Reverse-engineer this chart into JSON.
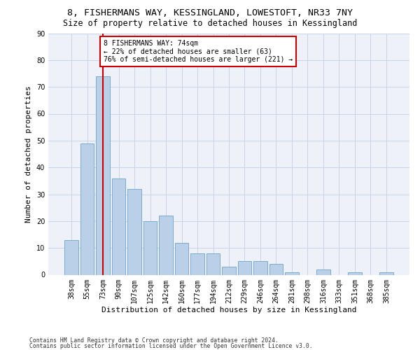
{
  "title1": "8, FISHERMANS WAY, KESSINGLAND, LOWESTOFT, NR33 7NY",
  "title2": "Size of property relative to detached houses in Kessingland",
  "xlabel": "Distribution of detached houses by size in Kessingland",
  "ylabel": "Number of detached properties",
  "categories": [
    "38sqm",
    "55sqm",
    "73sqm",
    "90sqm",
    "107sqm",
    "125sqm",
    "142sqm",
    "160sqm",
    "177sqm",
    "194sqm",
    "212sqm",
    "229sqm",
    "246sqm",
    "264sqm",
    "281sqm",
    "298sqm",
    "316sqm",
    "333sqm",
    "351sqm",
    "368sqm",
    "385sqm"
  ],
  "values": [
    13,
    49,
    74,
    36,
    32,
    20,
    22,
    12,
    8,
    8,
    3,
    5,
    5,
    4,
    1,
    0,
    2,
    0,
    1,
    0,
    1
  ],
  "bar_color": "#bad0e8",
  "bar_edge_color": "#7aacd0",
  "vline_x": 2,
  "vline_color": "#cc0000",
  "annotation_line1": "8 FISHERMANS WAY: 74sqm",
  "annotation_line2": "← 22% of detached houses are smaller (63)",
  "annotation_line3": "76% of semi-detached houses are larger (221) →",
  "annotation_box_color": "#ffffff",
  "annotation_box_edge": "#cc0000",
  "ylim": [
    0,
    90
  ],
  "yticks": [
    0,
    10,
    20,
    30,
    40,
    50,
    60,
    70,
    80,
    90
  ],
  "grid_color": "#c8d4e8",
  "bg_color": "#eef2f8",
  "footer1": "Contains HM Land Registry data © Crown copyright and database right 2024.",
  "footer2": "Contains public sector information licensed under the Open Government Licence v3.0.",
  "title1_fontsize": 9.5,
  "title2_fontsize": 8.5,
  "axis_tick_fontsize": 7,
  "ylabel_fontsize": 8,
  "xlabel_fontsize": 8,
  "annotation_fontsize": 7,
  "footer_fontsize": 5.8
}
